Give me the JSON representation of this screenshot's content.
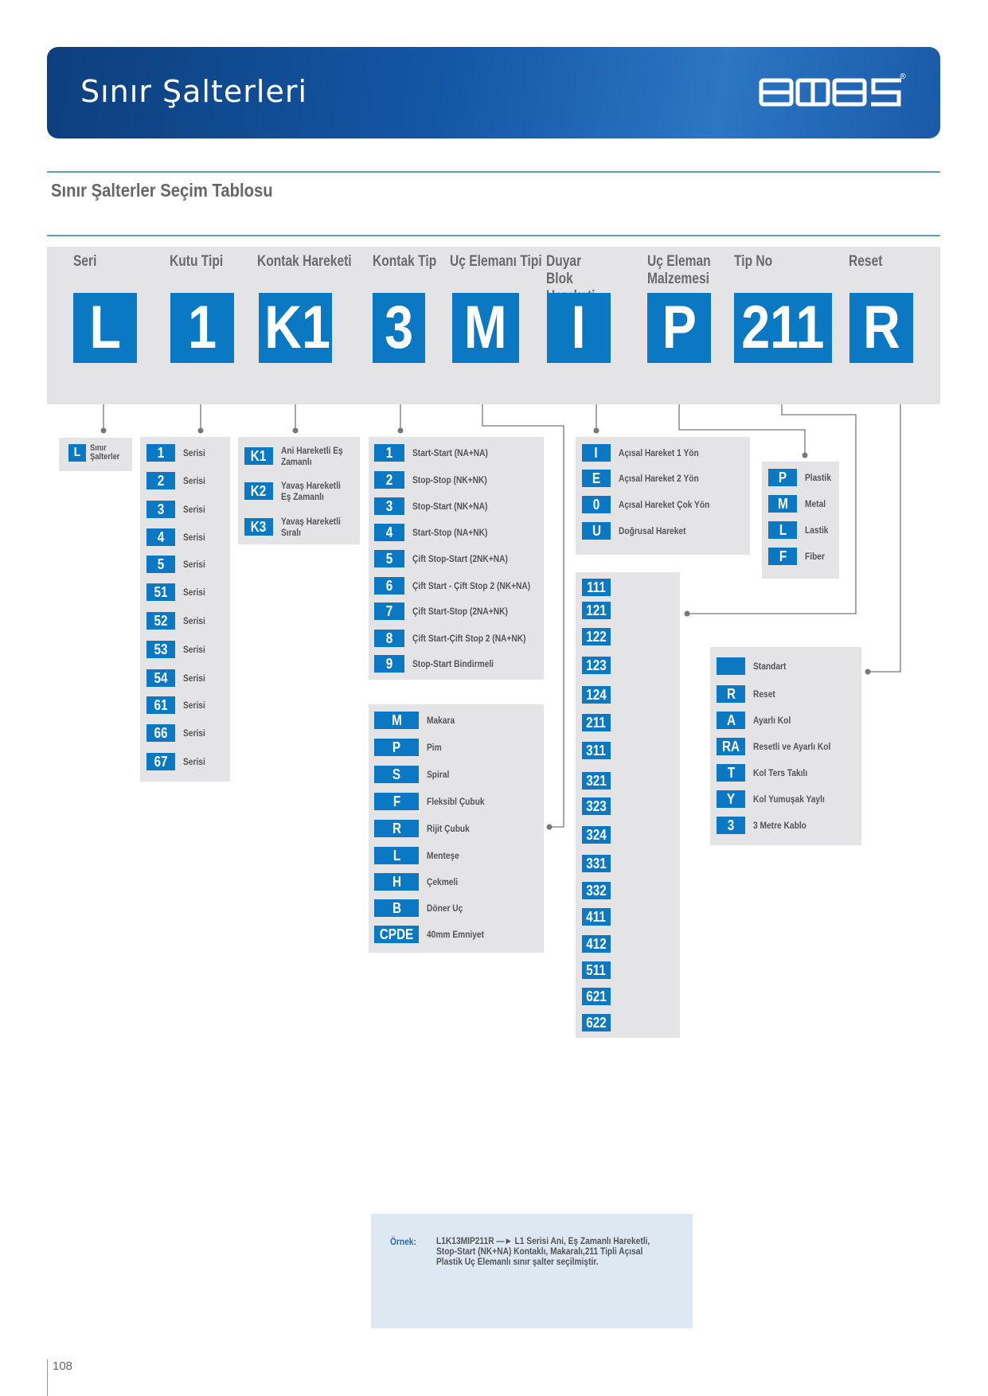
{
  "header": {
    "title": "Sınır Şalterleri",
    "logo": "emas",
    "logo_mark": "®"
  },
  "section_title": "Sınır Şalterler Seçim Tablosu",
  "code": {
    "columns": [
      {
        "label": "Seri",
        "value": "L"
      },
      {
        "label": "Kutu Tipi",
        "value": "1"
      },
      {
        "label": "Kontak Hareketi",
        "value": "K1"
      },
      {
        "label": "Kontak Tip",
        "value": "3"
      },
      {
        "label": "Uç Elemanı Tipi",
        "value": "M"
      },
      {
        "label": "Duyar Blok Hareketi",
        "value": "I"
      },
      {
        "label": "Uç Eleman Malzemesi",
        "value": "P"
      },
      {
        "label": "Tip No",
        "value": "211"
      },
      {
        "label": "Reset",
        "value": "R"
      }
    ]
  },
  "seri": [
    {
      "code": "L",
      "text": "Sınır Şalterler"
    }
  ],
  "kutu_tipi": [
    {
      "code": "1",
      "text": "Serisi"
    },
    {
      "code": "2",
      "text": "Serisi"
    },
    {
      "code": "3",
      "text": "Serisi"
    },
    {
      "code": "4",
      "text": "Serisi"
    },
    {
      "code": "5",
      "text": "Serisi"
    },
    {
      "code": "51",
      "text": "Serisi"
    },
    {
      "code": "52",
      "text": "Serisi"
    },
    {
      "code": "53",
      "text": "Serisi"
    },
    {
      "code": "54",
      "text": "Serisi"
    },
    {
      "code": "61",
      "text": "Serisi"
    },
    {
      "code": "66",
      "text": "Serisi"
    },
    {
      "code": "67",
      "text": "Serisi"
    }
  ],
  "kontak_hareketi": [
    {
      "code": "K1",
      "text": "Ani Hareketli Eş Zamanlı"
    },
    {
      "code": "K2",
      "text": "Yavaş Hareketli Eş Zamanlı"
    },
    {
      "code": "K3",
      "text": "Yavaş Hareketli Sıralı"
    }
  ],
  "kontak_tip": [
    {
      "code": "1",
      "text": "Start-Start (NA+NA)"
    },
    {
      "code": "2",
      "text": "Stop-Stop (NK+NK)"
    },
    {
      "code": "3",
      "text": "Stop-Start (NK+NA)"
    },
    {
      "code": "4",
      "text": "Start-Stop (NA+NK)"
    },
    {
      "code": "5",
      "text": "Çift Stop-Start (2NK+NA)"
    },
    {
      "code": "6",
      "text": "Çift Start - Çift Stop 2 (NK+NA)"
    },
    {
      "code": "7",
      "text": "Çift Start-Stop (2NA+NK)"
    },
    {
      "code": "8",
      "text": "Çift Start-Çift Stop 2 (NA+NK)"
    },
    {
      "code": "9",
      "text": "Stop-Start Bindirmeli"
    }
  ],
  "uc_elemani_tipi": [
    {
      "code": "M",
      "text": "Makara"
    },
    {
      "code": "P",
      "text": "Pim"
    },
    {
      "code": "S",
      "text": "Spiral"
    },
    {
      "code": "F",
      "text": "Fleksibl Çubuk"
    },
    {
      "code": "R",
      "text": "Rijit Çubuk"
    },
    {
      "code": "L",
      "text": "Menteşe"
    },
    {
      "code": "H",
      "text": "Çekmeli"
    },
    {
      "code": "B",
      "text": "Döner Uç"
    },
    {
      "code": "CPDE",
      "text": "40mm Emniyet"
    }
  ],
  "duyar_blok": [
    {
      "code": "I",
      "text": "Açısal Hareket 1 Yön"
    },
    {
      "code": "E",
      "text": "Açısal Hareket 2 Yön"
    },
    {
      "code": "0",
      "text": "Açısal Hareket Çok Yön"
    },
    {
      "code": "U",
      "text": "Doğrusal Hareket"
    }
  ],
  "uc_malzeme": [
    {
      "code": "P",
      "text": "Plastik"
    },
    {
      "code": "M",
      "text": "Metal"
    },
    {
      "code": "L",
      "text": "Lastik"
    },
    {
      "code": "F",
      "text": "Fiber"
    }
  ],
  "tip_no": [
    "111",
    "121",
    "122",
    "123",
    "124",
    "211",
    "311",
    "321",
    "323",
    "324",
    "331",
    "332",
    "411",
    "412",
    "511",
    "621",
    "622"
  ],
  "reset": [
    {
      "code": "",
      "text": "Standart"
    },
    {
      "code": "R",
      "text": "Reset"
    },
    {
      "code": "A",
      "text": "Ayarlı Kol"
    },
    {
      "code": "RA",
      "text": "Resetli ve Ayarlı Kol"
    },
    {
      "code": "T",
      "text": "Kol Ters Takılı"
    },
    {
      "code": "Y",
      "text": "Kol Yumuşak Yaylı"
    },
    {
      "code": "3",
      "text": "3 Metre Kablo"
    }
  ],
  "example": {
    "label": "Örnek:",
    "text": "L1K13MIP211R —► L1 Serisi Ani, Eş Zamanlı Hareketli, Stop-Start (NK+NA) Kontaklı, Makaralı,211 Tipli Açısal Plastik Uç Elemanlı sınır şalter seçilmiştir."
  },
  "page_number": "108",
  "colors": {
    "accent": "#0a78c2",
    "panel": "#e4e4e6",
    "banner": "#1457a6",
    "example_bg": "#dde8f3"
  }
}
